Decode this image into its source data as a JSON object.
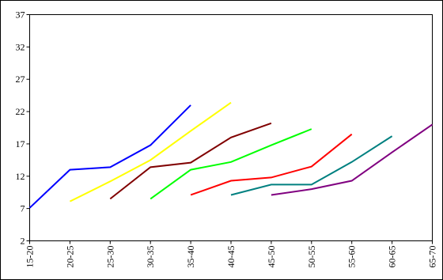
{
  "chart_data": {
    "type": "line",
    "categories": [
      "15-20",
      "20-25",
      "25-30",
      "30-35",
      "35-40",
      "40-45",
      "45-50",
      "50-55",
      "55-60",
      "60-65",
      "65-70"
    ],
    "series": [
      {
        "color": "#0000ff",
        "values": [
          7.1,
          13.0,
          13.4,
          16.8,
          23.0,
          null,
          null,
          null,
          null,
          null,
          null
        ]
      },
      {
        "color": "#ffff00",
        "values": [
          null,
          8.1,
          11.2,
          14.5,
          19.0,
          23.4,
          null,
          null,
          null,
          null,
          null
        ]
      },
      {
        "color": "#800000",
        "values": [
          null,
          null,
          8.5,
          13.4,
          14.1,
          18.0,
          20.2,
          null,
          null,
          null,
          null
        ]
      },
      {
        "color": "#00ff00",
        "values": [
          null,
          null,
          null,
          8.5,
          13.0,
          14.2,
          16.8,
          19.3,
          null,
          null,
          null
        ]
      },
      {
        "color": "#ff0000",
        "values": [
          null,
          null,
          null,
          null,
          9.1,
          11.3,
          11.8,
          13.5,
          18.5,
          null,
          null
        ]
      },
      {
        "color": "#008080",
        "values": [
          null,
          null,
          null,
          null,
          null,
          9.1,
          10.7,
          10.7,
          14.2,
          18.2,
          null
        ]
      },
      {
        "color": "#800080",
        "values": [
          null,
          null,
          null,
          null,
          null,
          null,
          9.1,
          10.0,
          11.3,
          15.7,
          20.0
        ]
      }
    ],
    "ylim": [
      2,
      37
    ],
    "yticks": [
      2,
      7,
      12,
      17,
      22,
      27,
      32,
      37
    ]
  }
}
